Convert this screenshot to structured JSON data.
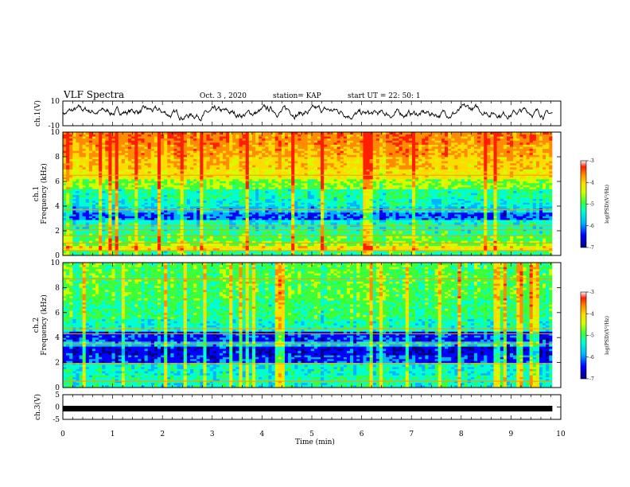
{
  "header": {
    "title": "VLF Spectra",
    "date": "Oct. 3 , 2020",
    "station": "station= KAP",
    "start": "start  UT =  22: 50: 1"
  },
  "chart_data": [
    {
      "id": "ch1-waveform",
      "type": "line",
      "ylabel": "ch.1(V)",
      "ylim": [
        -10,
        10
      ],
      "yticks": [
        "10",
        "-10"
      ],
      "xlim": [
        0,
        10
      ],
      "x_extent": 9.83,
      "baseline": 0,
      "amplitude": 3
    },
    {
      "id": "ch1-spectrogram",
      "type": "heatmap",
      "ylabel_lines": [
        "ch.1",
        "Frequency (kHz)"
      ],
      "ylim": [
        0,
        10
      ],
      "yticks": [
        "0",
        "2",
        "4",
        "6",
        "8",
        "10"
      ],
      "xlim": [
        0,
        10
      ],
      "x_extent": 9.83,
      "colorbar": {
        "range": [
          -7,
          -3
        ],
        "ticks": [
          "-3",
          "-4",
          "-5",
          "-6",
          "-7"
        ],
        "label": "log(PSD)(V²/Hz)"
      },
      "bands": [
        {
          "f0": 0,
          "f1": 0.4,
          "level": 0.45
        },
        {
          "f0": 0.4,
          "f1": 0.8,
          "level": 0.7
        },
        {
          "f0": 0.8,
          "f1": 1.2,
          "level": 0.55
        },
        {
          "f0": 1.2,
          "f1": 1.6,
          "level": 0.5
        },
        {
          "f0": 1.6,
          "f1": 2.0,
          "level": 0.45
        },
        {
          "f0": 2.0,
          "f1": 2.5,
          "level": 0.4
        },
        {
          "f0": 2.5,
          "f1": 2.9,
          "level": 0.38
        },
        {
          "f0": 2.9,
          "f1": 3.5,
          "level": 0.22
        },
        {
          "f0": 3.5,
          "f1": 4.0,
          "level": 0.32
        },
        {
          "f0": 4.0,
          "f1": 4.6,
          "level": 0.38
        },
        {
          "f0": 4.6,
          "f1": 5.4,
          "level": 0.42
        },
        {
          "f0": 5.4,
          "f1": 6.2,
          "level": 0.55
        },
        {
          "f0": 6.2,
          "f1": 7.0,
          "level": 0.68
        },
        {
          "f0": 7.0,
          "f1": 8.0,
          "level": 0.74
        },
        {
          "f0": 8.0,
          "f1": 9.0,
          "level": 0.8
        },
        {
          "f0": 9.0,
          "f1": 10.0,
          "level": 0.84
        }
      ],
      "lines": [
        0.4,
        1.0,
        1.6,
        2.1,
        2.4,
        3.7,
        6.5
      ]
    },
    {
      "id": "ch2-spectrogram",
      "type": "heatmap",
      "ylabel_lines": [
        "ch.2",
        "Frequency (kHz)"
      ],
      "ylim": [
        0,
        10
      ],
      "yticks": [
        "0",
        "2",
        "4",
        "6",
        "8",
        "10"
      ],
      "xlim": [
        0,
        10
      ],
      "x_extent": 9.83,
      "colorbar": {
        "range": [
          -7,
          -3
        ],
        "ticks": [
          "-3",
          "-4",
          "-5",
          "-6",
          "-7"
        ],
        "label": "log(PSD)(V²/Hz)"
      },
      "bands": [
        {
          "f0": 0,
          "f1": 0.4,
          "level": 0.4
        },
        {
          "f0": 0.4,
          "f1": 1.0,
          "level": 0.42
        },
        {
          "f0": 1.0,
          "f1": 2.0,
          "level": 0.38
        },
        {
          "f0": 2.0,
          "f1": 2.6,
          "level": 0.2
        },
        {
          "f0": 2.6,
          "f1": 3.3,
          "level": 0.14
        },
        {
          "f0": 3.3,
          "f1": 3.7,
          "level": 0.32
        },
        {
          "f0": 3.7,
          "f1": 4.5,
          "level": 0.18
        },
        {
          "f0": 4.5,
          "f1": 5.5,
          "level": 0.4
        },
        {
          "f0": 5.5,
          "f1": 7.0,
          "level": 0.46
        },
        {
          "f0": 7.0,
          "f1": 8.5,
          "level": 0.5
        },
        {
          "f0": 8.5,
          "f1": 10.0,
          "level": 0.5
        }
      ],
      "lines": [
        0.5,
        1.9,
        3.5,
        4.3,
        4.7,
        8.7
      ]
    },
    {
      "id": "ch3-waveform",
      "type": "line",
      "ylabel": "ch.3(V)",
      "ylim": [
        -5,
        5
      ],
      "yticks": [
        "5",
        "0",
        "-5"
      ],
      "xlim": [
        0,
        10
      ],
      "x_extent": 9.83,
      "baseline": 0,
      "amplitude": 0.5
    }
  ],
  "xaxis": {
    "label": "Time (min)",
    "ticks": [
      "0",
      "1",
      "2",
      "3",
      "4",
      "5",
      "6",
      "7",
      "8",
      "9",
      "10"
    ]
  },
  "colors": {
    "scale": [
      "#00007f",
      "#0000ff",
      "#00b4ff",
      "#00ffd0",
      "#3cff3c",
      "#d2ff00",
      "#ffdc00",
      "#ff8c00",
      "#ff1e00",
      "#ffffff"
    ]
  }
}
